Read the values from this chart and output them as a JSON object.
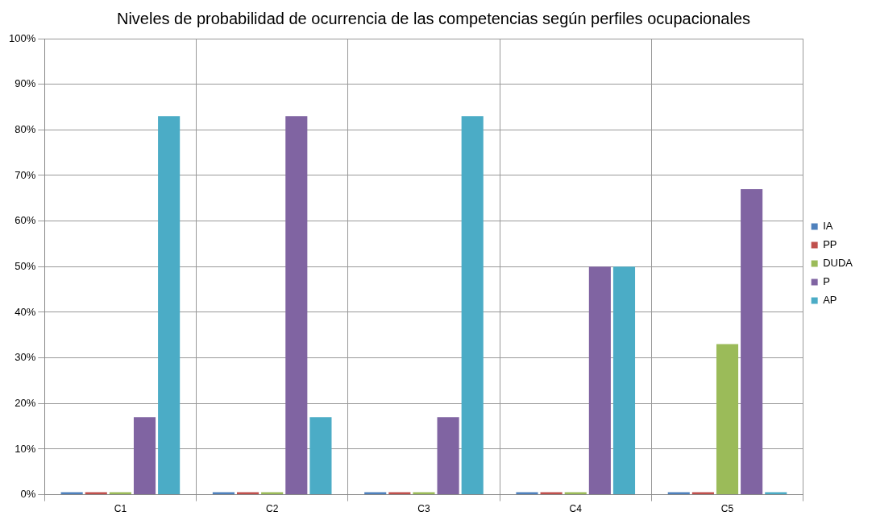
{
  "chart_data": {
    "type": "bar",
    "title": "Niveles de probabilidad de ocurrencia de las competencias según perfiles ocupacionales",
    "categories": [
      "C1",
      "C2",
      "C3",
      "C4",
      "C5"
    ],
    "series": [
      {
        "name": "IA",
        "color": "#4f81bd",
        "values": [
          0,
          0,
          0,
          0,
          0
        ]
      },
      {
        "name": "PP",
        "color": "#c0504d",
        "values": [
          0,
          0,
          0,
          0,
          0
        ]
      },
      {
        "name": "DUDA",
        "color": "#9bbb59",
        "values": [
          0,
          0,
          0,
          0,
          33
        ]
      },
      {
        "name": "P",
        "color": "#8064a2",
        "values": [
          17,
          83,
          17,
          50,
          67
        ]
      },
      {
        "name": "AP",
        "color": "#4bacc6",
        "values": [
          83,
          17,
          83,
          50,
          0
        ]
      }
    ],
    "ylim": [
      0,
      100
    ],
    "yticks": [
      {
        "value": 0,
        "label": "0%"
      },
      {
        "value": 10,
        "label": "10%"
      },
      {
        "value": 20,
        "label": "20%"
      },
      {
        "value": 30,
        "label": "30%"
      },
      {
        "value": 40,
        "label": "40%"
      },
      {
        "value": 50,
        "label": "50%"
      },
      {
        "value": 60,
        "label": "60%"
      },
      {
        "value": 70,
        "label": "70%"
      },
      {
        "value": 80,
        "label": "80%"
      },
      {
        "value": 90,
        "label": "90%"
      },
      {
        "value": 100,
        "label": "100%"
      }
    ],
    "grid": true,
    "legend": "right"
  }
}
